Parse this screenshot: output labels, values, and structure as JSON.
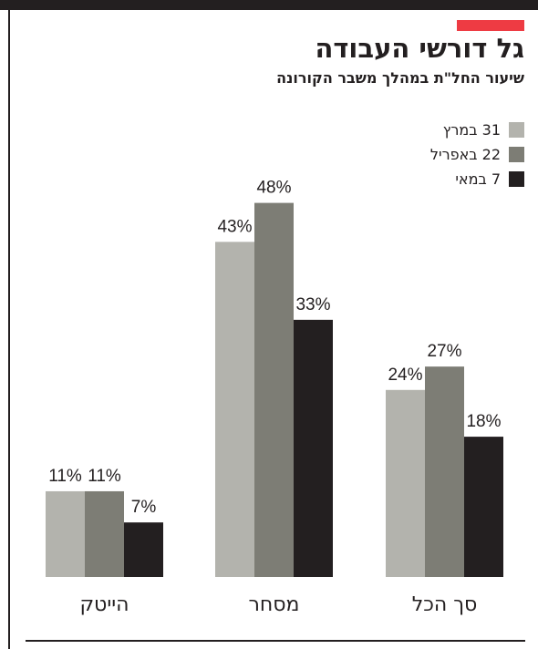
{
  "header": {
    "title": "גל דורשי העבודה",
    "subtitle": "שיעור החל\"ת במהלך משבר הקורונה"
  },
  "colors": {
    "accent": "#ee3b43",
    "series": [
      "#b3b3ad",
      "#7d7d75",
      "#231f20"
    ]
  },
  "chart_data": {
    "type": "bar",
    "title": "גל דורשי העבודה",
    "subtitle": "שיעור החל\"ת במהלך משבר הקורונה",
    "categories": [
      "הייטק",
      "מסחר",
      "סך הכל"
    ],
    "series": [
      {
        "name": "31 במרץ",
        "values": [
          11,
          43,
          24
        ],
        "labels": [
          "11%",
          "43%",
          "24%"
        ]
      },
      {
        "name": "22 באפריל",
        "values": [
          11,
          48,
          27
        ],
        "labels": [
          "11%",
          "48%",
          "27%"
        ]
      },
      {
        "name": "7 במאי",
        "values": [
          7,
          33,
          18
        ],
        "labels": [
          "7%",
          "33%",
          "18%"
        ]
      }
    ],
    "value_unit": "%",
    "ylim": [
      0,
      48
    ],
    "grid": false,
    "legend_position": "top-right",
    "xlabel": "",
    "ylabel": ""
  }
}
